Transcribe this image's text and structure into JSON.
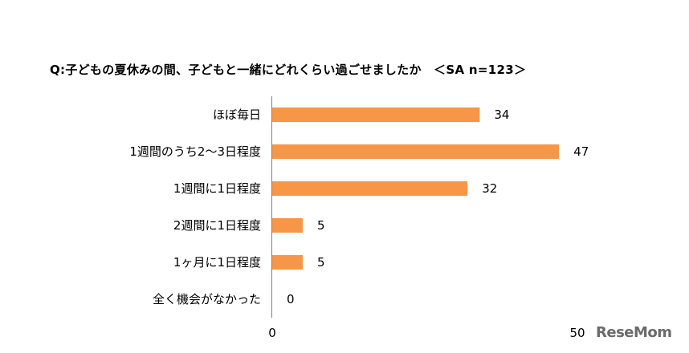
{
  "chart_data": {
    "type": "bar",
    "orientation": "horizontal",
    "title": "Q:子どもの夏休みの間、子どもと一緒にどれくらい過ごせましたか　＜SA n=123＞",
    "categories": [
      "ほぼ毎日",
      "1週間のうち2～3日程度",
      "1週間に1日程度",
      "2週間に1日程度",
      "1ヶ月に1日程度",
      "全く機会がなかった"
    ],
    "values": [
      34,
      47,
      32,
      5,
      5,
      0
    ],
    "xlim": [
      0,
      50
    ],
    "xticks": [
      "0",
      "50"
    ],
    "bar_color": "#f79646",
    "grid": false,
    "legend": "none"
  },
  "watermark": "ReseMom"
}
